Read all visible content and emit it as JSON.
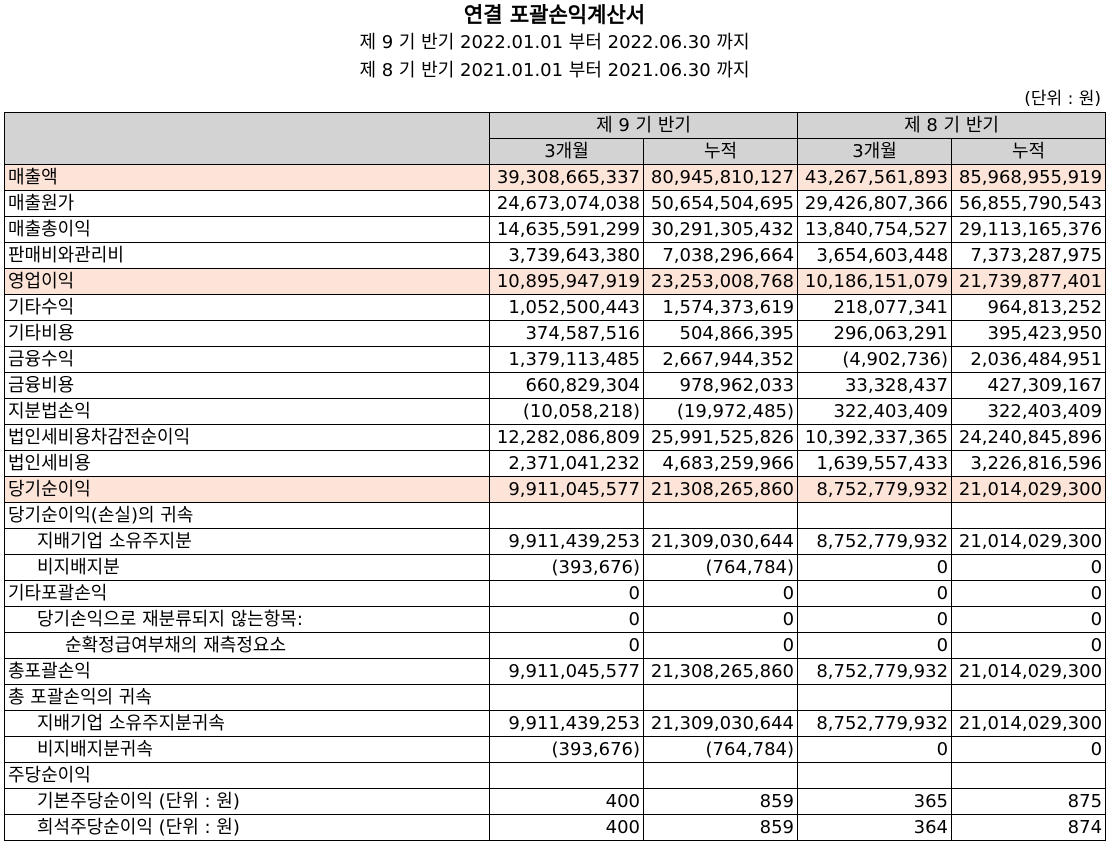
{
  "title": "연결 포괄손익계산서",
  "periods": [
    "제 9 기 반기 2022.01.01 부터 2022.06.30 까지",
    "제 8 기 반기 2021.01.01 부터 2021.06.30 까지"
  ],
  "unit": "(단위 : 원)",
  "header": {
    "period_cols": [
      "제 9 기 반기",
      "제 8 기 반기"
    ],
    "sub_cols": [
      "3개월",
      "누적",
      "3개월",
      "누적"
    ]
  },
  "colors": {
    "header_bg": "#d3d3d3",
    "highlight_bg": "#fde4d9"
  },
  "rows": [
    {
      "label": "매출액",
      "values": [
        "39,308,665,337",
        "80,945,810,127",
        "43,267,561,893",
        "85,968,955,919"
      ],
      "highlight": true,
      "indent": 0
    },
    {
      "label": "매출원가",
      "values": [
        "24,673,074,038",
        "50,654,504,695",
        "29,426,807,366",
        "56,855,790,543"
      ],
      "highlight": false,
      "indent": 0
    },
    {
      "label": "매출총이익",
      "values": [
        "14,635,591,299",
        "30,291,305,432",
        "13,840,754,527",
        "29,113,165,376"
      ],
      "highlight": false,
      "indent": 0
    },
    {
      "label": "판매비와관리비",
      "values": [
        "3,739,643,380",
        "7,038,296,664",
        "3,654,603,448",
        "7,373,287,975"
      ],
      "highlight": false,
      "indent": 0
    },
    {
      "label": "영업이익",
      "values": [
        "10,895,947,919",
        "23,253,008,768",
        "10,186,151,079",
        "21,739,877,401"
      ],
      "highlight": true,
      "indent": 0
    },
    {
      "label": "기타수익",
      "values": [
        "1,052,500,443",
        "1,574,373,619",
        "218,077,341",
        "964,813,252"
      ],
      "highlight": false,
      "indent": 0
    },
    {
      "label": "기타비용",
      "values": [
        "374,587,516",
        "504,866,395",
        "296,063,291",
        "395,423,950"
      ],
      "highlight": false,
      "indent": 0
    },
    {
      "label": "금융수익",
      "values": [
        "1,379,113,485",
        "2,667,944,352",
        "(4,902,736)",
        "2,036,484,951"
      ],
      "highlight": false,
      "indent": 0
    },
    {
      "label": "금융비용",
      "values": [
        "660,829,304",
        "978,962,033",
        "33,328,437",
        "427,309,167"
      ],
      "highlight": false,
      "indent": 0
    },
    {
      "label": "지분법손익",
      "values": [
        "(10,058,218)",
        "(19,972,485)",
        "322,403,409",
        "322,403,409"
      ],
      "highlight": false,
      "indent": 0
    },
    {
      "label": "법인세비용차감전순이익",
      "values": [
        "12,282,086,809",
        "25,991,525,826",
        "10,392,337,365",
        "24,240,845,896"
      ],
      "highlight": false,
      "indent": 0
    },
    {
      "label": "법인세비용",
      "values": [
        "2,371,041,232",
        "4,683,259,966",
        "1,639,557,433",
        "3,226,816,596"
      ],
      "highlight": false,
      "indent": 0
    },
    {
      "label": "당기순이익",
      "values": [
        "9,911,045,577",
        "21,308,265,860",
        "8,752,779,932",
        "21,014,029,300"
      ],
      "highlight": true,
      "indent": 0
    },
    {
      "label": "당기순이익(손실)의 귀속",
      "values": [
        "",
        "",
        "",
        ""
      ],
      "highlight": false,
      "indent": 0
    },
    {
      "label": "지배기업 소유주지분",
      "values": [
        "9,911,439,253",
        "21,309,030,644",
        "8,752,779,932",
        "21,014,029,300"
      ],
      "highlight": false,
      "indent": 1
    },
    {
      "label": "비지배지분",
      "values": [
        "(393,676)",
        "(764,784)",
        "0",
        "0"
      ],
      "highlight": false,
      "indent": 1
    },
    {
      "label": "기타포괄손익",
      "values": [
        "0",
        "0",
        "0",
        "0"
      ],
      "highlight": false,
      "indent": 0
    },
    {
      "label": "당기손익으로 재분류되지 않는항목:",
      "values": [
        "0",
        "0",
        "0",
        "0"
      ],
      "highlight": false,
      "indent": 1
    },
    {
      "label": "순확정급여부채의 재측정요소",
      "values": [
        "0",
        "0",
        "0",
        "0"
      ],
      "highlight": false,
      "indent": 2
    },
    {
      "label": "총포괄손익",
      "values": [
        "9,911,045,577",
        "21,308,265,860",
        "8,752,779,932",
        "21,014,029,300"
      ],
      "highlight": false,
      "indent": 0
    },
    {
      "label": "총 포괄손익의 귀속",
      "values": [
        "",
        "",
        "",
        ""
      ],
      "highlight": false,
      "indent": 0
    },
    {
      "label": "지배기업 소유주지분귀속",
      "values": [
        "9,911,439,253",
        "21,309,030,644",
        "8,752,779,932",
        "21,014,029,300"
      ],
      "highlight": false,
      "indent": 1
    },
    {
      "label": "비지배지분귀속",
      "values": [
        "(393,676)",
        "(764,784)",
        "0",
        "0"
      ],
      "highlight": false,
      "indent": 1
    },
    {
      "label": "주당순이익",
      "values": [
        "",
        "",
        "",
        ""
      ],
      "highlight": false,
      "indent": 0
    },
    {
      "label": "기본주당순이익 (단위 : 원)",
      "values": [
        "400",
        "859",
        "365",
        "875"
      ],
      "highlight": false,
      "indent": 1
    },
    {
      "label": "희석주당순이익 (단위 : 원)",
      "values": [
        "400",
        "859",
        "364",
        "874"
      ],
      "highlight": false,
      "indent": 1
    }
  ]
}
